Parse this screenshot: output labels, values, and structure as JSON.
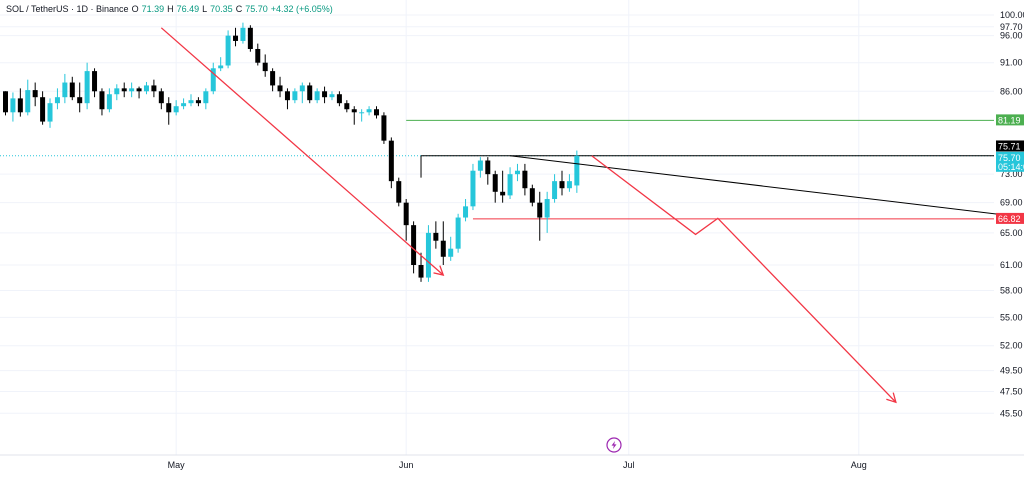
{
  "header": {
    "symbol": "SOL / TetherUS · 1D · Binance",
    "o_label": "O",
    "o_value": "71.39",
    "h_label": "H",
    "h_value": "76.49",
    "l_label": "L",
    "l_value": "70.35",
    "c_label": "C",
    "c_value": "75.70",
    "change": "+4.32 (+6.05%)"
  },
  "colors": {
    "up": "#26c6da",
    "down": "#000000",
    "green_line": "#4caf50",
    "red_line": "#f23645",
    "black_line": "#000000",
    "current_price": "#26c6da",
    "accent_icon": "#9c27b0"
  },
  "chart_data": {
    "type": "candlestick",
    "y_axis": {
      "min": 43.5,
      "max": 100.0,
      "scale": "log",
      "position": "right",
      "ticks": [
        "100.00",
        "97.70",
        "96.00",
        "91.00",
        "86.00",
        "73.00",
        "69.00",
        "65.00",
        "61.00",
        "58.00",
        "55.00",
        "52.00",
        "49.50",
        "47.50",
        "45.50"
      ]
    },
    "x_axis": {
      "labels": [
        "May",
        "Jun",
        "Jul",
        "Aug"
      ]
    },
    "candles": [
      [
        86.0,
        82.5,
        86.0,
        82.0
      ],
      [
        82.5,
        84.8,
        85.8,
        81.0
      ],
      [
        84.8,
        82.5,
        86.5,
        81.8
      ],
      [
        82.5,
        86.2,
        88.0,
        82.0
      ],
      [
        86.2,
        85.0,
        87.5,
        83.5
      ],
      [
        85.0,
        81.0,
        86.0,
        80.5
      ],
      [
        81.0,
        84.0,
        84.8,
        80.0
      ],
      [
        84.0,
        85.0,
        86.5,
        83.0
      ],
      [
        85.0,
        87.5,
        89.0,
        84.0
      ],
      [
        87.5,
        85.0,
        88.5,
        84.5
      ],
      [
        85.0,
        84.0,
        87.5,
        82.5
      ],
      [
        84.0,
        89.5,
        91.0,
        83.0
      ],
      [
        89.5,
        86.0,
        90.0,
        85.0
      ],
      [
        86.0,
        83.0,
        86.5,
        82.0
      ],
      [
        83.0,
        85.5,
        86.5,
        82.5
      ],
      [
        85.5,
        86.5,
        87.2,
        84.5
      ],
      [
        86.5,
        86.0,
        87.5,
        85.0
      ],
      [
        86.0,
        86.5,
        87.5,
        85.0
      ],
      [
        86.5,
        86.0,
        86.8,
        84.8
      ],
      [
        86.0,
        87.0,
        87.6,
        85.5
      ],
      [
        87.0,
        86.0,
        88.0,
        85.0
      ],
      [
        86.0,
        84.0,
        86.5,
        83.0
      ],
      [
        84.0,
        82.5,
        85.0,
        80.5
      ],
      [
        82.5,
        83.5,
        84.5,
        82.0
      ],
      [
        83.5,
        84.0,
        84.8,
        83.0
      ],
      [
        84.0,
        84.5,
        85.5,
        83.5
      ],
      [
        84.5,
        84.0,
        85.0,
        83.5
      ],
      [
        84.0,
        86.0,
        86.5,
        83.0
      ],
      [
        86.0,
        90.0,
        91.0,
        85.5
      ],
      [
        90.0,
        90.5,
        92.0,
        89.5
      ],
      [
        90.5,
        96.0,
        97.0,
        90.0
      ],
      [
        96.0,
        95.0,
        97.5,
        94.0
      ],
      [
        95.0,
        97.5,
        98.5,
        94.5
      ],
      [
        97.5,
        93.5,
        98.0,
        93.0
      ],
      [
        93.5,
        91.0,
        94.5,
        90.5
      ],
      [
        91.0,
        89.5,
        92.5,
        88.5
      ],
      [
        89.5,
        87.0,
        90.0,
        86.0
      ],
      [
        87.0,
        86.0,
        88.5,
        85.0
      ],
      [
        86.0,
        84.5,
        86.5,
        83.0
      ],
      [
        84.5,
        86.0,
        86.5,
        84.0
      ],
      [
        86.0,
        87.0,
        87.5,
        84.0
      ],
      [
        87.0,
        84.5,
        87.5,
        84.0
      ],
      [
        84.5,
        86.0,
        86.5,
        84.0
      ],
      [
        86.0,
        85.0,
        86.8,
        84.0
      ],
      [
        85.0,
        85.5,
        86.0,
        84.5
      ],
      [
        85.5,
        84.0,
        86.0,
        83.5
      ],
      [
        84.0,
        83.0,
        84.5,
        82.5
      ],
      [
        83.0,
        82.5,
        83.5,
        80.5
      ],
      [
        82.5,
        82.5,
        83.0,
        81.0
      ],
      [
        82.5,
        83.0,
        83.5,
        82.0
      ],
      [
        83.0,
        82.0,
        83.5,
        81.5
      ],
      [
        82.0,
        78.0,
        82.5,
        77.5
      ],
      [
        78.0,
        72.0,
        78.5,
        71.0
      ],
      [
        72.0,
        69.0,
        72.5,
        68.5
      ],
      [
        69.0,
        66.0,
        69.5,
        64.0
      ],
      [
        66.0,
        61.0,
        66.5,
        60.0
      ],
      [
        61.0,
        59.5,
        62.5,
        59.0
      ],
      [
        59.5,
        65.0,
        66.0,
        59.0
      ],
      [
        65.0,
        64.0,
        66.5,
        63.0
      ],
      [
        64.0,
        62.0,
        66.5,
        61.0
      ],
      [
        62.0,
        63.0,
        64.5,
        61.5
      ],
      [
        63.0,
        67.0,
        67.5,
        62.5
      ],
      [
        67.0,
        68.5,
        69.5,
        66.5
      ],
      [
        68.5,
        73.5,
        74.5,
        68.0
      ],
      [
        73.5,
        75.0,
        75.5,
        72.5
      ],
      [
        75.0,
        73.0,
        75.5,
        71.5
      ],
      [
        73.0,
        70.5,
        73.5,
        69.0
      ],
      [
        70.5,
        70.0,
        73.5,
        69.0
      ],
      [
        70.0,
        73.0,
        74.0,
        69.5
      ],
      [
        73.0,
        73.5,
        74.5,
        72.0
      ],
      [
        73.5,
        71.0,
        74.5,
        70.0
      ],
      [
        71.0,
        69.0,
        71.5,
        68.5
      ],
      [
        69.0,
        67.0,
        70.5,
        64.0
      ],
      [
        67.0,
        69.5,
        70.5,
        65.0
      ],
      [
        69.5,
        72.0,
        73.0,
        69.0
      ],
      [
        72.0,
        71.0,
        73.5,
        70.0
      ],
      [
        71.0,
        72.0,
        73.0,
        70.5
      ],
      [
        71.39,
        75.7,
        76.49,
        70.35
      ]
    ],
    "horizontal_levels": [
      {
        "price": 81.19,
        "label": "81.19",
        "color": "#4caf50"
      },
      {
        "price": 75.71,
        "label": "75.71",
        "color": "#000000"
      },
      {
        "price": 66.82,
        "label": "66.82",
        "color": "#f23645"
      }
    ],
    "current_price": {
      "price": 75.7,
      "label": "75.70",
      "countdown": "05:14:04"
    },
    "trendlines": [
      {
        "color": "#000000",
        "points": [
          [
            "2024-06-15",
            75.71
          ],
          [
            "2024-08-25",
            66.82
          ]
        ]
      }
    ],
    "arrows": [
      {
        "color": "#f23645",
        "points": [
          [
            "2024-04-29",
            97.5
          ],
          [
            "2024-06-06",
            59.8
          ]
        ]
      },
      {
        "color": "#f23645",
        "points": [
          [
            "2024-06-26",
            75.71
          ],
          [
            "2024-07-10",
            64.8
          ],
          [
            "2024-07-13",
            66.9
          ],
          [
            "2024-08-06",
            46.5
          ]
        ]
      }
    ]
  }
}
